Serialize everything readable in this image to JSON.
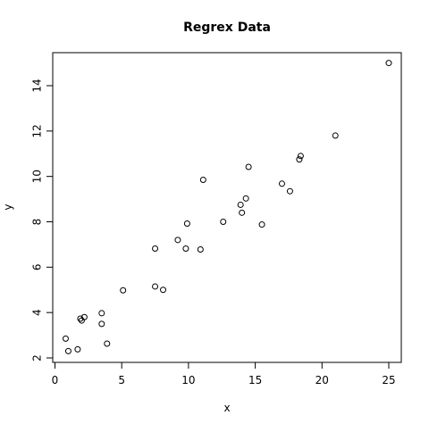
{
  "chart_data": {
    "type": "scatter",
    "title": "Regrex Data",
    "xlabel": "x",
    "ylabel": "y",
    "xlim": [
      0,
      26
    ],
    "ylim": [
      2,
      15.2
    ],
    "xticks": [
      0,
      5,
      10,
      15,
      20,
      25
    ],
    "yticks": [
      2,
      4,
      6,
      8,
      10,
      12,
      14
    ],
    "grid": false,
    "marker": "open-circle",
    "colors": {
      "point": "#000000",
      "axis": "#000000",
      "background": "#ffffff"
    },
    "points": [
      {
        "x": 0.8,
        "y": 2.85
      },
      {
        "x": 1.0,
        "y": 2.3
      },
      {
        "x": 1.7,
        "y": 2.38
      },
      {
        "x": 1.9,
        "y": 3.73
      },
      {
        "x": 2.0,
        "y": 3.65
      },
      {
        "x": 2.2,
        "y": 3.8
      },
      {
        "x": 3.5,
        "y": 3.97
      },
      {
        "x": 3.5,
        "y": 3.5
      },
      {
        "x": 3.9,
        "y": 2.63
      },
      {
        "x": 5.1,
        "y": 4.98
      },
      {
        "x": 7.5,
        "y": 5.15
      },
      {
        "x": 7.5,
        "y": 6.82
      },
      {
        "x": 8.1,
        "y": 5.0
      },
      {
        "x": 9.2,
        "y": 7.2
      },
      {
        "x": 9.8,
        "y": 6.82
      },
      {
        "x": 9.9,
        "y": 7.92
      },
      {
        "x": 10.9,
        "y": 6.78
      },
      {
        "x": 11.1,
        "y": 9.85
      },
      {
        "x": 12.6,
        "y": 8.0
      },
      {
        "x": 13.9,
        "y": 8.75
      },
      {
        "x": 14.0,
        "y": 8.4
      },
      {
        "x": 14.3,
        "y": 9.03
      },
      {
        "x": 14.5,
        "y": 10.42
      },
      {
        "x": 15.5,
        "y": 7.88
      },
      {
        "x": 17.0,
        "y": 9.68
      },
      {
        "x": 17.6,
        "y": 9.35
      },
      {
        "x": 18.3,
        "y": 10.75
      },
      {
        "x": 18.4,
        "y": 10.9
      },
      {
        "x": 21.0,
        "y": 11.8
      },
      {
        "x": 25.0,
        "y": 15.0
      }
    ]
  }
}
